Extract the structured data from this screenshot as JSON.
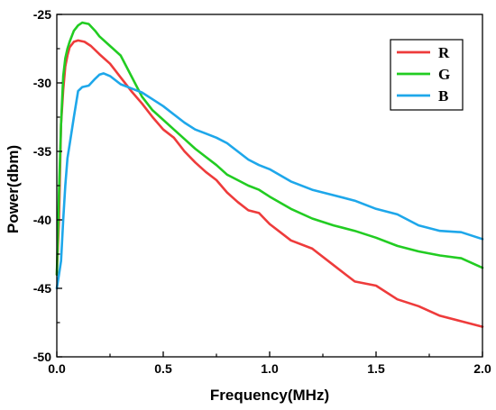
{
  "chart_data": {
    "type": "line",
    "title": "",
    "xlabel": "Frequency(MHz)",
    "ylabel": "Power(dbm)",
    "xlim": [
      0.0,
      2.0
    ],
    "ylim": [
      -50,
      -25
    ],
    "xticks": [
      0.0,
      0.5,
      1.0,
      1.5,
      2.0
    ],
    "xtick_labels": [
      "0.0",
      "0.5",
      "1.0",
      "1.5",
      "2.0"
    ],
    "yticks": [
      -50,
      -45,
      -40,
      -35,
      -30,
      -25
    ],
    "ytick_labels": [
      "-50",
      "-45",
      "-40",
      "-35",
      "-30",
      "-25"
    ],
    "grid": false,
    "legend_position": "top-right",
    "series": [
      {
        "name": "R",
        "color": "#ee3b3b",
        "x": [
          0.0,
          0.01,
          0.02,
          0.03,
          0.04,
          0.05,
          0.06,
          0.08,
          0.1,
          0.13,
          0.16,
          0.2,
          0.25,
          0.3,
          0.35,
          0.4,
          0.45,
          0.5,
          0.55,
          0.6,
          0.65,
          0.7,
          0.75,
          0.8,
          0.85,
          0.9,
          0.95,
          1.0,
          1.1,
          1.2,
          1.3,
          1.4,
          1.5,
          1.6,
          1.7,
          1.8,
          1.9,
          2.0
        ],
        "y": [
          -44.0,
          -40.0,
          -33.0,
          -30.5,
          -28.8,
          -28.0,
          -27.4,
          -27.0,
          -26.9,
          -27.0,
          -27.3,
          -27.9,
          -28.6,
          -29.6,
          -30.6,
          -31.5,
          -32.5,
          -33.4,
          -34.0,
          -35.0,
          -35.8,
          -36.5,
          -37.1,
          -38.0,
          -38.7,
          -39.3,
          -39.5,
          -40.3,
          -41.5,
          -42.1,
          -43.3,
          -44.5,
          -44.8,
          -45.8,
          -46.3,
          -47.0,
          -47.4,
          -47.8
        ]
      },
      {
        "name": "G",
        "color": "#22cc22",
        "x": [
          0.0,
          0.01,
          0.02,
          0.03,
          0.04,
          0.05,
          0.06,
          0.08,
          0.1,
          0.12,
          0.15,
          0.18,
          0.2,
          0.25,
          0.3,
          0.35,
          0.4,
          0.45,
          0.5,
          0.55,
          0.6,
          0.65,
          0.7,
          0.75,
          0.8,
          0.85,
          0.9,
          0.95,
          1.0,
          1.1,
          1.2,
          1.3,
          1.4,
          1.5,
          1.6,
          1.7,
          1.8,
          1.9,
          2.0
        ],
        "y": [
          -44.0,
          -38.0,
          -33.0,
          -29.5,
          -28.2,
          -27.5,
          -27.0,
          -26.2,
          -25.8,
          -25.6,
          -25.7,
          -26.2,
          -26.6,
          -27.3,
          -28.0,
          -29.5,
          -31.0,
          -32.0,
          -32.7,
          -33.4,
          -34.1,
          -34.8,
          -35.4,
          -36.0,
          -36.7,
          -37.1,
          -37.5,
          -37.8,
          -38.3,
          -39.2,
          -39.9,
          -40.4,
          -40.8,
          -41.3,
          -41.9,
          -42.3,
          -42.6,
          -42.8,
          -43.5
        ]
      },
      {
        "name": "B",
        "color": "#1ea7ea",
        "x": [
          0.0,
          0.01,
          0.02,
          0.03,
          0.04,
          0.05,
          0.06,
          0.08,
          0.1,
          0.12,
          0.15,
          0.18,
          0.2,
          0.22,
          0.25,
          0.3,
          0.35,
          0.4,
          0.45,
          0.5,
          0.55,
          0.6,
          0.65,
          0.7,
          0.75,
          0.8,
          0.85,
          0.9,
          0.95,
          1.0,
          1.1,
          1.2,
          1.3,
          1.4,
          1.5,
          1.6,
          1.7,
          1.8,
          1.9,
          2.0
        ],
        "y": [
          -45.0,
          -44.0,
          -43.0,
          -40.0,
          -37.5,
          -35.5,
          -34.5,
          -32.5,
          -30.6,
          -30.3,
          -30.2,
          -29.7,
          -29.4,
          -29.3,
          -29.5,
          -30.1,
          -30.4,
          -30.7,
          -31.2,
          -31.7,
          -32.3,
          -32.9,
          -33.4,
          -33.7,
          -34.0,
          -34.4,
          -35.0,
          -35.6,
          -36.0,
          -36.3,
          -37.2,
          -37.8,
          -38.2,
          -38.6,
          -39.2,
          -39.6,
          -40.4,
          -40.8,
          -40.9,
          -41.4
        ]
      }
    ]
  }
}
